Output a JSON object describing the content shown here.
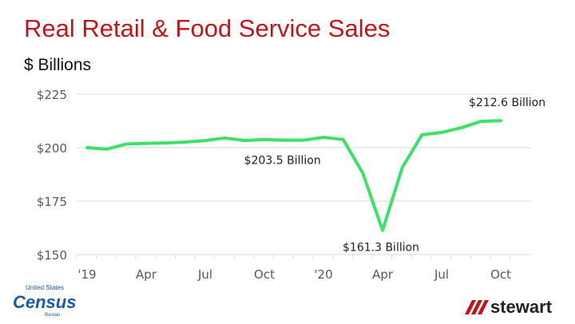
{
  "chart_data": {
    "type": "line",
    "title": "Real Retail & Food Service Sales",
    "ylabel": "$ Billions",
    "ylim": [
      150,
      225
    ],
    "yticks": [
      "$150",
      "$175",
      "$200",
      "$225"
    ],
    "ytick_values": [
      150,
      175,
      200,
      225
    ],
    "xtick_labels": [
      "'19",
      "Apr",
      "Jul",
      "Oct",
      "'20",
      "Apr",
      "Jul",
      "Oct"
    ],
    "xtick_indices": [
      0,
      3,
      6,
      9,
      12,
      15,
      18,
      21
    ],
    "grid": true,
    "line_color": "#3ee06a",
    "series": [
      {
        "values": [
          200.0,
          199.3,
          201.7,
          202.0,
          202.2,
          202.6,
          203.3,
          204.5,
          203.3,
          203.8,
          203.5,
          203.5,
          204.8,
          203.8,
          188.0,
          161.3,
          190.7,
          206.0,
          207.1,
          209.3,
          212.3,
          212.6
        ]
      }
    ],
    "annotations": [
      {
        "text": "$203.5 Billion",
        "index": 10,
        "value": 203.5,
        "position": "below"
      },
      {
        "text": "$161.3 Billion",
        "index": 15,
        "value": 161.3,
        "position": "below"
      },
      {
        "text": "$212.6 Billion",
        "index": 21,
        "value": 212.6,
        "position": "above"
      }
    ]
  },
  "logos": {
    "census": {
      "top": "United States",
      "main": "Census",
      "bottom": "Bureau"
    },
    "stewart": {
      "text": "stewart",
      "color": "#c0151b"
    }
  }
}
